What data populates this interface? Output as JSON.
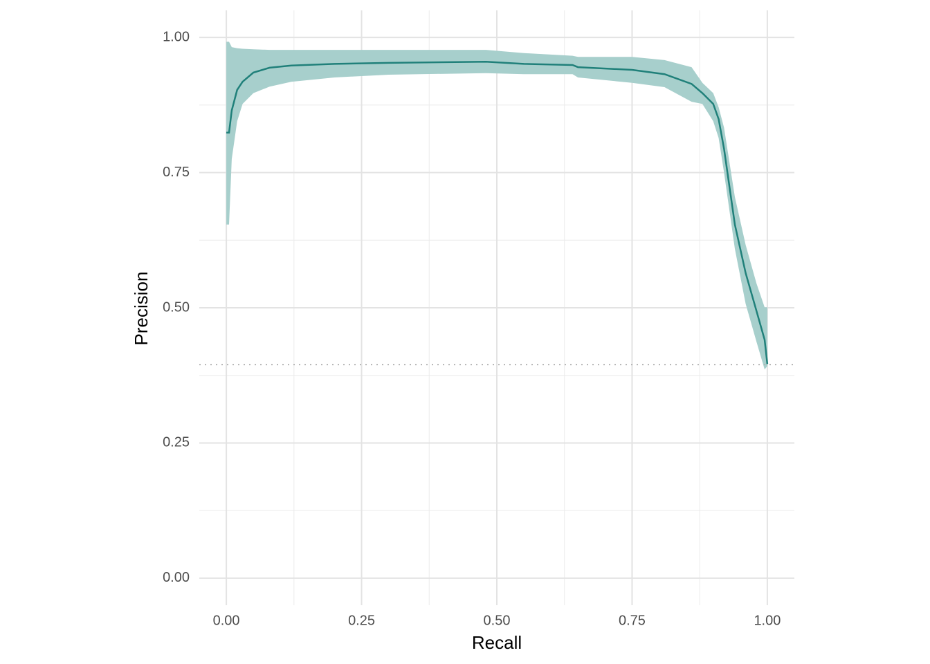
{
  "chart_data": {
    "type": "ribbon-line",
    "x_label": "Recall",
    "y_label": "Precision",
    "x": [
      0,
      0.005,
      0.01,
      0.02,
      0.03,
      0.05,
      0.08,
      0.12,
      0.2,
      0.3,
      0.48,
      0.55,
      0.64,
      0.65,
      0.75,
      0.81,
      0.86,
      0.88,
      0.9,
      0.91,
      0.92,
      0.94,
      0.96,
      0.98,
      0.995,
      1.0
    ],
    "values": [
      0.824,
      0.824,
      0.865,
      0.903,
      0.918,
      0.935,
      0.944,
      0.948,
      0.951,
      0.953,
      0.955,
      0.951,
      0.949,
      0.945,
      0.94,
      0.932,
      0.914,
      0.897,
      0.877,
      0.849,
      0.794,
      0.654,
      0.564,
      0.494,
      0.441,
      0.396
    ],
    "upper": [
      0.992,
      0.992,
      0.982,
      0.98,
      0.979,
      0.978,
      0.977,
      0.977,
      0.977,
      0.977,
      0.977,
      0.971,
      0.966,
      0.964,
      0.964,
      0.958,
      0.945,
      0.916,
      0.897,
      0.871,
      0.833,
      0.705,
      0.616,
      0.545,
      0.501,
      0.501
    ],
    "lower": [
      0.654,
      0.654,
      0.775,
      0.845,
      0.877,
      0.897,
      0.909,
      0.918,
      0.926,
      0.931,
      0.934,
      0.932,
      0.932,
      0.926,
      0.916,
      0.908,
      0.881,
      0.877,
      0.845,
      0.814,
      0.75,
      0.609,
      0.507,
      0.437,
      0.386,
      0.392
    ],
    "color": "#20807a",
    "ribbon_color": "#a7cfcc",
    "baseline": 0.395,
    "xlim": [
      -0.05,
      1.05
    ],
    "ylim": [
      -0.05,
      1.05
    ],
    "xticks": [
      {
        "value": 0,
        "label": "0.00"
      },
      {
        "value": 0.25,
        "label": "0.25"
      },
      {
        "value": 0.5,
        "label": "0.50"
      },
      {
        "value": 0.75,
        "label": "0.75"
      },
      {
        "value": 1,
        "label": "1.00"
      }
    ],
    "yticks": [
      {
        "value": 0,
        "label": "0.00"
      },
      {
        "value": 0.25,
        "label": "0.25"
      },
      {
        "value": 0.5,
        "label": "0.50"
      },
      {
        "value": 0.75,
        "label": "0.75"
      },
      {
        "value": 1,
        "label": "1.00"
      }
    ],
    "x_minor_ticks": [
      0.125,
      0.375,
      0.625,
      0.875
    ],
    "y_minor_ticks": [
      0.125,
      0.375,
      0.625,
      0.875
    ],
    "grid": true
  }
}
